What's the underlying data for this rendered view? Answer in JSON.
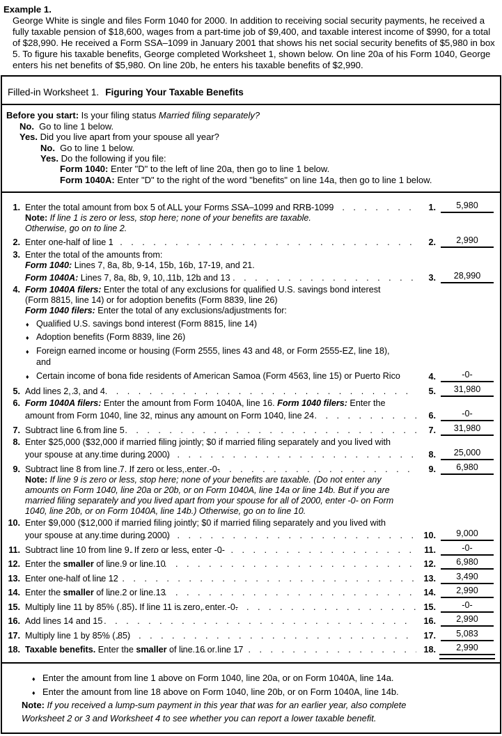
{
  "colors": {
    "text": "#000000",
    "background": "#ffffff",
    "border": "#000000"
  },
  "glyphs": {
    "bullet": "♦",
    "dot_leader": ".  "
  },
  "example": {
    "heading": "Example 1.",
    "body": "George White is single and files Form 1040 for 2000. In addition to receiving social security payments, he received a fully taxable pension of $18,600, wages from a part-time job of $9,400, and taxable interest income of $990, for a total of $28,990. He received a Form SSA–1099 in January 2001 that shows his net social security benefits of $5,980 in box 5. To figure his taxable benefits, George completed Worksheet 1, shown below. On line 20a of his Form 1040, George enters his net benefits of $5,980. On line 20b, he enters his taxable benefits of $2,990."
  },
  "worksheet": {
    "title_prefix": "Filled-in Worksheet 1.",
    "title_main": "Figuring Your Taxable Benefits",
    "before_rows": [
      {
        "indent": 0,
        "seg": [
          [
            "Before you start:",
            "b"
          ],
          [
            " Is your filing status ",
            ""
          ],
          [
            "Married filing separately?",
            "i"
          ]
        ]
      },
      {
        "indent": 1,
        "seg": [
          [
            "No.",
            "b"
          ],
          [
            "  Go to line 1 below.",
            ""
          ]
        ]
      },
      {
        "indent": 1,
        "seg": [
          [
            "Yes.",
            "b"
          ],
          [
            " Did you live apart from your spouse all year?",
            ""
          ]
        ]
      },
      {
        "indent": 2,
        "seg": [
          [
            "No.",
            "b"
          ],
          [
            "  Go to line 1 below.",
            ""
          ]
        ]
      },
      {
        "indent": 2,
        "seg": [
          [
            "Yes.",
            "b"
          ],
          [
            " Do the following if you file:",
            ""
          ]
        ]
      },
      {
        "indent": 3,
        "seg": [
          [
            "Form 1040:",
            "b"
          ],
          [
            " Enter \"D\" to the left of line 20a, then go to line 1 below.",
            ""
          ]
        ]
      },
      {
        "indent": 3,
        "seg": [
          [
            "Form 1040A:",
            "b"
          ],
          [
            " Enter \"D\" to the right of the word \"benefits\" on line 14a, then go to line 1 below.",
            ""
          ]
        ]
      }
    ],
    "rows": [
      {
        "num": "1.",
        "seg": [
          [
            "Enter the total amount from box 5 of ALL your Forms SSA–1099 and RRB-1099",
            ""
          ]
        ],
        "dots": true,
        "amt": {
          "label": "1.",
          "value": "5,980"
        }
      },
      {
        "seg": [
          [
            "Note:",
            "b"
          ],
          [
            " If line 1 is zero or less, stop here; none of your benefits are taxable.",
            "i"
          ]
        ]
      },
      {
        "seg": [
          [
            "Otherwise, go on to line 2.",
            "i"
          ]
        ]
      },
      {
        "num": "2.",
        "seg": [
          [
            "Enter one-half of line 1",
            ""
          ]
        ],
        "dots": true,
        "amt": {
          "label": "2.",
          "value": "2,990"
        }
      },
      {
        "num": "3.",
        "seg": [
          [
            "Enter the total of the amounts from:",
            ""
          ]
        ]
      },
      {
        "seg": [
          [
            "Form 1040:",
            "bi"
          ],
          [
            " Lines 7, 8a, 8b, 9-14, 15b, 16b, 17-19, and 21.",
            ""
          ]
        ]
      },
      {
        "seg": [
          [
            "Form 1040A:",
            "bi"
          ],
          [
            " Lines 7, 8a, 8b, 9, 10, 11b, 12b and 13",
            ""
          ]
        ],
        "dots": true,
        "amt": {
          "label": "3.",
          "value": "28,990"
        }
      },
      {
        "num": "4.",
        "seg": [
          [
            "Form 1040A filers:",
            "bi"
          ],
          [
            " Enter the total of any exclusions for qualified U.S. savings bond interest",
            ""
          ]
        ]
      },
      {
        "seg": [
          [
            "(Form 8815, line 14) or for adoption benefits (Form 8839, line 26)",
            ""
          ]
        ]
      },
      {
        "seg": [
          [
            "Form 1040 filers:",
            "bi"
          ],
          [
            " Enter the total of any exclusions/adjustments for:",
            ""
          ]
        ]
      },
      {
        "bullet": true,
        "seg": [
          [
            "Qualified U.S. savings bond interest (Form 8815, line 14)",
            ""
          ]
        ]
      },
      {
        "bullet": true,
        "seg": [
          [
            "Adoption benefits (Form 8839, line 26)",
            ""
          ]
        ]
      },
      {
        "bullet": true,
        "seg": [
          [
            "Foreign earned income or housing (Form 2555, lines 43 and 48, or Form 2555-EZ, line 18),",
            ""
          ]
        ]
      },
      {
        "cont": true,
        "seg": [
          [
            "and",
            ""
          ]
        ]
      },
      {
        "bullet": true,
        "seg": [
          [
            "Certain income of bona fide residents of American Samoa (Form 4563, line 15) or Puerto Rico",
            ""
          ]
        ],
        "amt": {
          "label": "4.",
          "value": "-0-"
        }
      },
      {
        "num": "5.",
        "seg": [
          [
            "Add lines 2, 3, and 4",
            ""
          ]
        ],
        "dots": true,
        "amt": {
          "label": "5.",
          "value": "31,980"
        }
      },
      {
        "num": "6.",
        "seg": [
          [
            "Form 1040A filers:",
            "bi"
          ],
          [
            " Enter the amount from Form 1040A, line 16. ",
            ""
          ],
          [
            "Form 1040 filers:",
            "bi"
          ],
          [
            " Enter the",
            ""
          ]
        ]
      },
      {
        "seg": [
          [
            "amount from Form 1040, line 32, minus any amount on Form 1040, line 24",
            ""
          ]
        ],
        "dots": true,
        "amt": {
          "label": "6.",
          "value": "-0-"
        }
      },
      {
        "num": "7.",
        "seg": [
          [
            "Subtract line 6 from line 5",
            ""
          ]
        ],
        "dots": true,
        "amt": {
          "label": "7.",
          "value": "31,980"
        }
      },
      {
        "num": "8.",
        "seg": [
          [
            "Enter $25,000 ($32,000 if married filing jointly; $0 if married filing separately and you lived with",
            ""
          ]
        ]
      },
      {
        "seg": [
          [
            "your spouse at any time during 2000)",
            ""
          ]
        ],
        "dots": true,
        "amt": {
          "label": "8.",
          "value": "25,000"
        }
      },
      {
        "num": "9.",
        "seg": [
          [
            "Subtract line 8 from line 7. If zero or less, enter -0-",
            ""
          ]
        ],
        "dots": true,
        "amt": {
          "label": "9.",
          "value": "6,980"
        }
      },
      {
        "seg": [
          [
            "Note:",
            "b"
          ],
          [
            " If line 9 is zero or less, stop here; none of your benefits are taxable. (Do not enter any",
            "i"
          ]
        ]
      },
      {
        "seg": [
          [
            "amounts on Form 1040, line 20a or 20b, or on Form 1040A, line 14a or line 14b. But if you are",
            "i"
          ]
        ]
      },
      {
        "seg": [
          [
            "married filing separately and you lived apart from your spouse for all of 2000, enter -0- on Form",
            "i"
          ]
        ]
      },
      {
        "seg": [
          [
            "1040, line 20b, or on Form 1040A, line 14b.) Otherwise, go on to line 10.",
            "i"
          ]
        ]
      },
      {
        "num": "10.",
        "seg": [
          [
            "Enter $9,000 ($12,000 if married filing jointly; $0 if married filing separately and you lived with",
            ""
          ]
        ]
      },
      {
        "seg": [
          [
            "your spouse at any time during 2000)",
            ""
          ]
        ],
        "dots": true,
        "amt": {
          "label": "10.",
          "value": "9,000"
        }
      },
      {
        "num": "11.",
        "seg": [
          [
            "Subtract line 10 from line 9. If zero or less, enter -0-",
            ""
          ]
        ],
        "dots": true,
        "amt": {
          "label": "11.",
          "value": "-0-"
        }
      },
      {
        "num": "12.",
        "seg": [
          [
            "Enter the ",
            ""
          ],
          [
            "smaller",
            "b"
          ],
          [
            " of line 9 or line 10",
            ""
          ]
        ],
        "dots": true,
        "amt": {
          "label": "12.",
          "value": "6,980"
        }
      },
      {
        "num": "13.",
        "seg": [
          [
            "Enter one-half of line 12",
            ""
          ]
        ],
        "dots": true,
        "amt": {
          "label": "13.",
          "value": "3,490"
        }
      },
      {
        "num": "14.",
        "seg": [
          [
            "Enter the ",
            ""
          ],
          [
            "smaller",
            "b"
          ],
          [
            " of line 2 or line 13",
            ""
          ]
        ],
        "dots": true,
        "amt": {
          "label": "14.",
          "value": "2,990"
        }
      },
      {
        "num": "15.",
        "seg": [
          [
            "Multiply line 11 by 85% (.85). If line 11 is zero, enter -0-",
            ""
          ]
        ],
        "dots": true,
        "amt": {
          "label": "15.",
          "value": "-0-"
        }
      },
      {
        "num": "16.",
        "seg": [
          [
            "Add lines 14 and 15",
            ""
          ]
        ],
        "dots": true,
        "amt": {
          "label": "16.",
          "value": "2,990"
        }
      },
      {
        "num": "17.",
        "seg": [
          [
            "Multiply line 1 by 85% (.85)",
            ""
          ]
        ],
        "dots": true,
        "amt": {
          "label": "17.",
          "value": "5,083"
        }
      },
      {
        "num": "18.",
        "seg": [
          [
            "Taxable benefits.",
            "b"
          ],
          [
            " Enter the ",
            ""
          ],
          [
            "smaller",
            "b"
          ],
          [
            " of line 16 or line 17",
            ""
          ]
        ],
        "dots": true,
        "amt": {
          "label": "18.",
          "value": "2,990",
          "double": true
        }
      }
    ],
    "footer_rows": [
      {
        "bullet": true,
        "seg": [
          [
            "Enter the amount from line 1 above on Form 1040, line 20a, or on Form 1040A, line 14a.",
            ""
          ]
        ]
      },
      {
        "bullet": true,
        "seg": [
          [
            "Enter the amount from line 18 above on Form 1040, line 20b, or on Form 1040A, line 14b.",
            ""
          ]
        ]
      },
      {
        "note": true,
        "seg": [
          [
            "Note:",
            "b"
          ],
          [
            " If you received a lump-sum payment in this year that was for an earlier year, also complete",
            "i"
          ]
        ]
      },
      {
        "note": true,
        "seg": [
          [
            "Worksheet 2 or 3 and Worksheet 4 to see whether you can report a lower taxable benefit.",
            "i"
          ]
        ]
      }
    ]
  }
}
